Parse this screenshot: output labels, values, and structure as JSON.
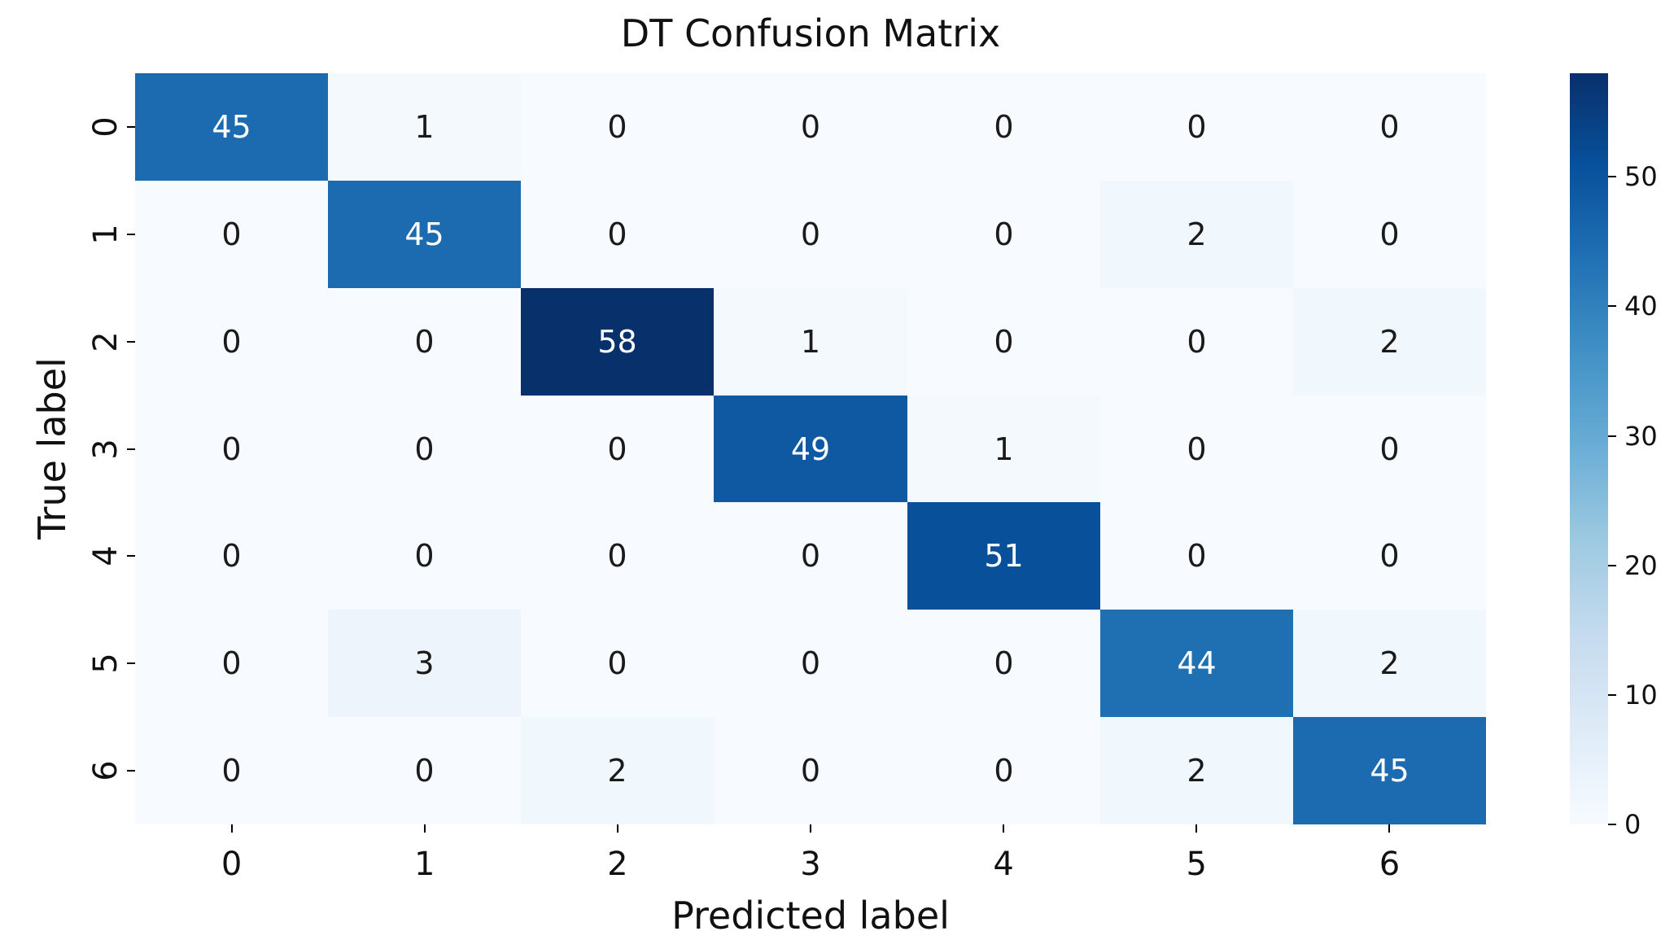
{
  "chart_data": {
    "type": "heatmap",
    "title": "DT Confusion Matrix",
    "xlabel": "Predicted label",
    "ylabel": "True label",
    "x_tick_labels": [
      "0",
      "1",
      "2",
      "3",
      "4",
      "5",
      "6"
    ],
    "y_tick_labels": [
      "0",
      "1",
      "2",
      "3",
      "4",
      "5",
      "6"
    ],
    "matrix": [
      [
        45,
        1,
        0,
        0,
        0,
        0,
        0
      ],
      [
        0,
        45,
        0,
        0,
        0,
        2,
        0
      ],
      [
        0,
        0,
        58,
        1,
        0,
        0,
        2
      ],
      [
        0,
        0,
        0,
        49,
        1,
        0,
        0
      ],
      [
        0,
        0,
        0,
        0,
        51,
        0,
        0
      ],
      [
        0,
        3,
        0,
        0,
        0,
        44,
        2
      ],
      [
        0,
        0,
        2,
        0,
        0,
        2,
        45
      ]
    ],
    "vmin": 0,
    "vmax": 58,
    "colorbar_ticks": [
      0,
      10,
      20,
      30,
      40,
      50
    ],
    "legend_position": "right-colorbar",
    "grid": false,
    "colormap": {
      "name": "Blues",
      "anchors": [
        {
          "p": 0.0,
          "c": "#f7fbff"
        },
        {
          "p": 0.125,
          "c": "#deebf7"
        },
        {
          "p": 0.25,
          "c": "#c6dbef"
        },
        {
          "p": 0.375,
          "c": "#9ecae1"
        },
        {
          "p": 0.5,
          "c": "#6baed6"
        },
        {
          "p": 0.625,
          "c": "#4292c6"
        },
        {
          "p": 0.75,
          "c": "#2171b5"
        },
        {
          "p": 0.875,
          "c": "#08519c"
        },
        {
          "p": 1.0,
          "c": "#08306b"
        }
      ]
    },
    "annotation_colors": {
      "on_dark": "#ffffff",
      "on_light": "#1a1a1a"
    }
  }
}
